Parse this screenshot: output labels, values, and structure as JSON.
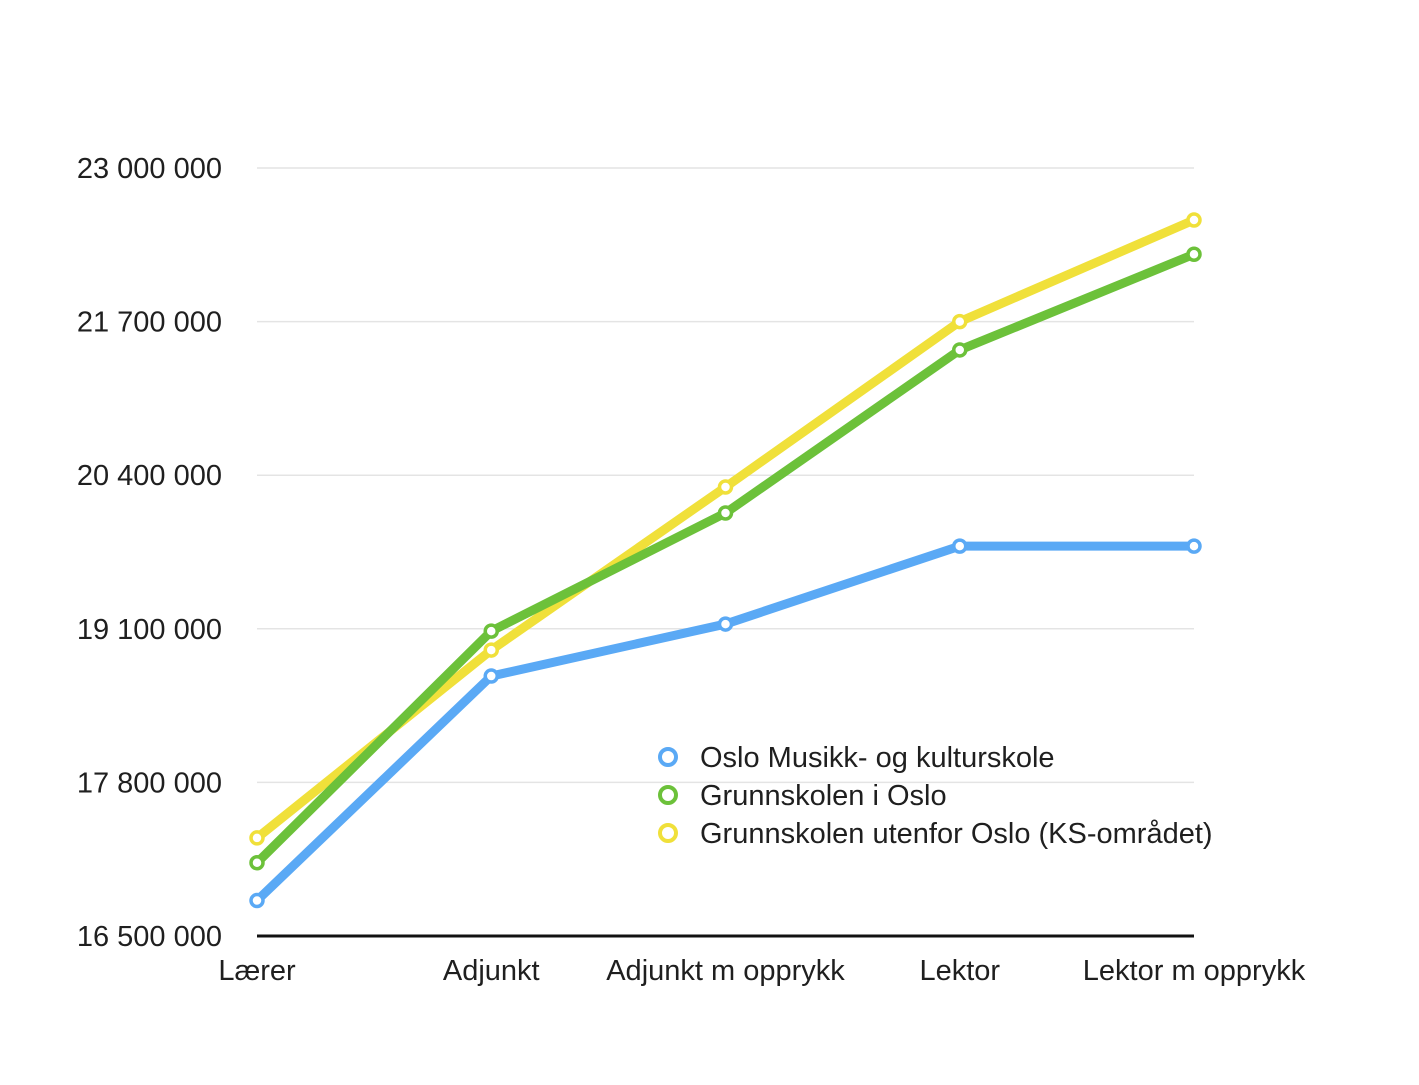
{
  "chart_data": {
    "type": "line",
    "categories": [
      "Lærer",
      "Adjunkt",
      "Adjunkt m opprykk",
      "Lektor",
      "Lektor m opprykk"
    ],
    "y_ticks": [
      {
        "value": 16500000,
        "label": "16 500 000"
      },
      {
        "value": 17800000,
        "label": "17 800 000"
      },
      {
        "value": 19100000,
        "label": "19 100 000"
      },
      {
        "value": 20400000,
        "label": "20 400 000"
      },
      {
        "value": 21700000,
        "label": "21 700 000"
      },
      {
        "value": 23000000,
        "label": "23 000 000"
      }
    ],
    "ylim": [
      16500000,
      23000000
    ],
    "grid": true,
    "legend_position": "bottom-right inside",
    "series": [
      {
        "name": "Oslo Musikk- og kulturskole",
        "color": "#5aa9f5",
        "values": [
          16800000,
          18700000,
          19140000,
          19800000,
          19800000
        ]
      },
      {
        "name": "Grunnskolen i Oslo",
        "color": "#6cc13a",
        "values": [
          17120000,
          19080000,
          20080000,
          21460000,
          22270000
        ]
      },
      {
        "name": "Grunnskolen utenfor Oslo (KS-området)",
        "color": "#f0e03a",
        "values": [
          17330000,
          18920000,
          20300000,
          21700000,
          22560000
        ]
      }
    ]
  }
}
